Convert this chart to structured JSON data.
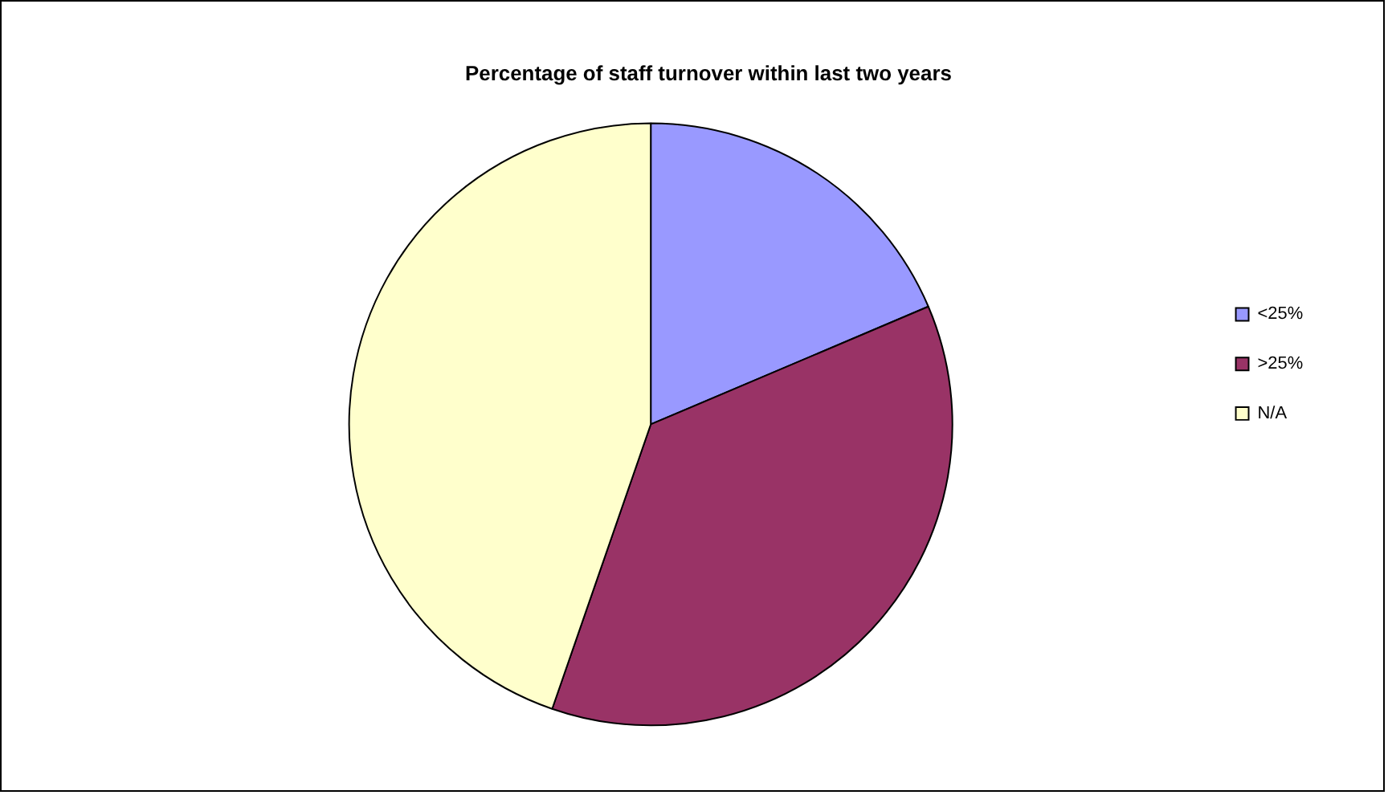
{
  "chart_data": {
    "type": "pie",
    "title": "Percentage of staff turnover within last two years",
    "categories": [
      "<25%",
      ">25%",
      "N/A"
    ],
    "values": [
      18.6,
      36.7,
      44.7
    ],
    "colors": [
      "#9999ff",
      "#993366",
      "#ffffcc"
    ],
    "legend": "right"
  }
}
